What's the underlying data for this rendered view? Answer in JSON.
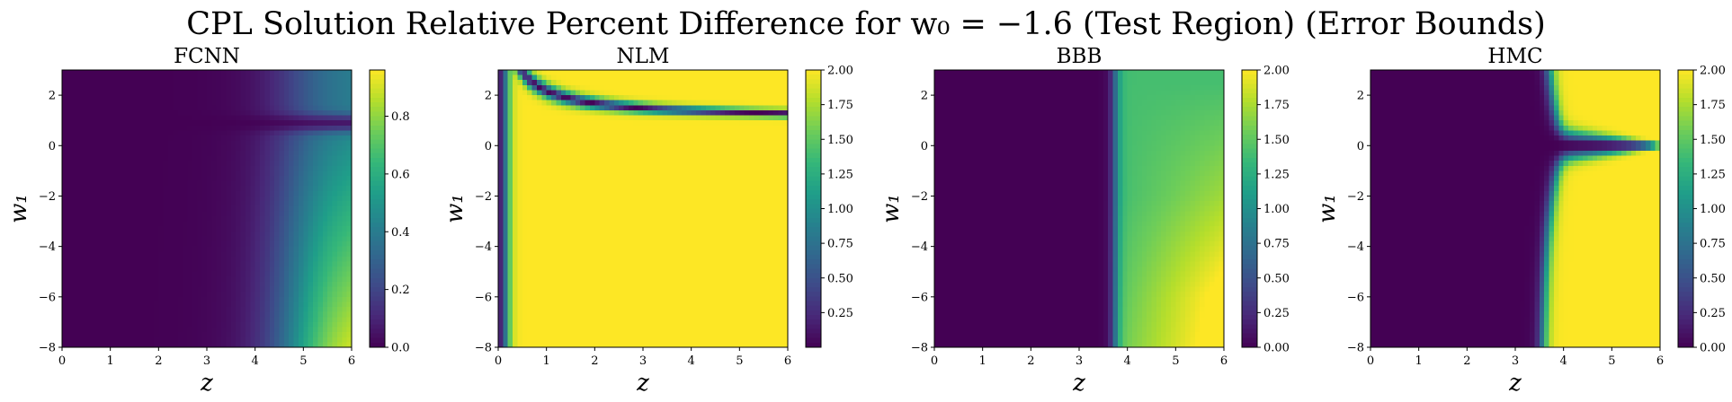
{
  "figure": {
    "title": "CPL Solution Relative Percent Difference for w₀ = −1.6 (Test Region) (Error Bounds)"
  },
  "chart_data": [
    {
      "type": "heatmap",
      "title": "FCNN",
      "xlabel": "z",
      "ylabel": "w₁",
      "xlim": [
        0,
        6
      ],
      "ylim": [
        -8,
        3
      ],
      "xticks": [
        "0",
        "1",
        "2",
        "3",
        "4",
        "5",
        "6"
      ],
      "yticks": [
        "−8",
        "−6",
        "−4",
        "−2",
        "0",
        "2"
      ],
      "colormap": "viridis",
      "colorbar": {
        "range": [
          0,
          0.96
        ],
        "ticks": [
          "0.0",
          "0.2",
          "0.4",
          "0.6",
          "0.8"
        ]
      },
      "pattern": "near zero for z<4; rises toward ~0.9 near z=6 at low w1; dark band near w1≈0.9 at z≈5.5"
    },
    {
      "type": "heatmap",
      "title": "NLM",
      "xlabel": "z",
      "ylabel": "w₁",
      "xlim": [
        0,
        6
      ],
      "ylim": [
        -8,
        3
      ],
      "xticks": [
        "0",
        "1",
        "2",
        "3",
        "4",
        "5",
        "6"
      ],
      "yticks": [
        "−8",
        "−6",
        "−4",
        "−2",
        "0",
        "2"
      ],
      "colormap": "viridis",
      "colorbar": {
        "range": [
          0,
          2.0
        ],
        "ticks": [
          "0.25",
          "0.50",
          "0.75",
          "1.00",
          "1.25",
          "1.50",
          "1.75",
          "2.00"
        ]
      },
      "pattern": "saturated ~2.0 almost everywhere; dark curve approaching w1≈1 for large z; dark near z=0"
    },
    {
      "type": "heatmap",
      "title": "BBB",
      "xlabel": "z",
      "ylabel": "w₁",
      "xlim": [
        0,
        6
      ],
      "ylim": [
        -8,
        3
      ],
      "xticks": [
        "0",
        "1",
        "2",
        "3",
        "4",
        "5",
        "6"
      ],
      "yticks": [
        "−8",
        "−6",
        "−4",
        "−2",
        "0",
        "2"
      ],
      "colormap": "viridis",
      "colorbar": {
        "range": [
          0,
          2.0
        ],
        "ticks": [
          "0.00",
          "0.25",
          "0.50",
          "0.75",
          "1.00",
          "1.25",
          "1.50",
          "1.75",
          "2.00"
        ]
      },
      "pattern": "near zero for z<3.6; ~1.5 band for 3.8<z<6, approaching 2.0 at low w1 and z≈6"
    },
    {
      "type": "heatmap",
      "title": "HMC",
      "xlabel": "z",
      "ylabel": "w₁",
      "xlim": [
        0,
        6
      ],
      "ylim": [
        -8,
        3
      ],
      "xticks": [
        "0",
        "1",
        "2",
        "3",
        "4",
        "5",
        "6"
      ],
      "yticks": [
        "−8",
        "−6",
        "−4",
        "−2",
        "0",
        "2"
      ],
      "colormap": "viridis",
      "colorbar": {
        "range": [
          0,
          2.0
        ],
        "ticks": [
          "0.00",
          "0.25",
          "0.50",
          "0.75",
          "1.00",
          "1.25",
          "1.50",
          "1.75",
          "2.00"
        ]
      },
      "pattern": "near zero for z<3.5; saturated ~2.0 for z>4 except dark wedge along w1≈0 widening toward small z"
    }
  ]
}
